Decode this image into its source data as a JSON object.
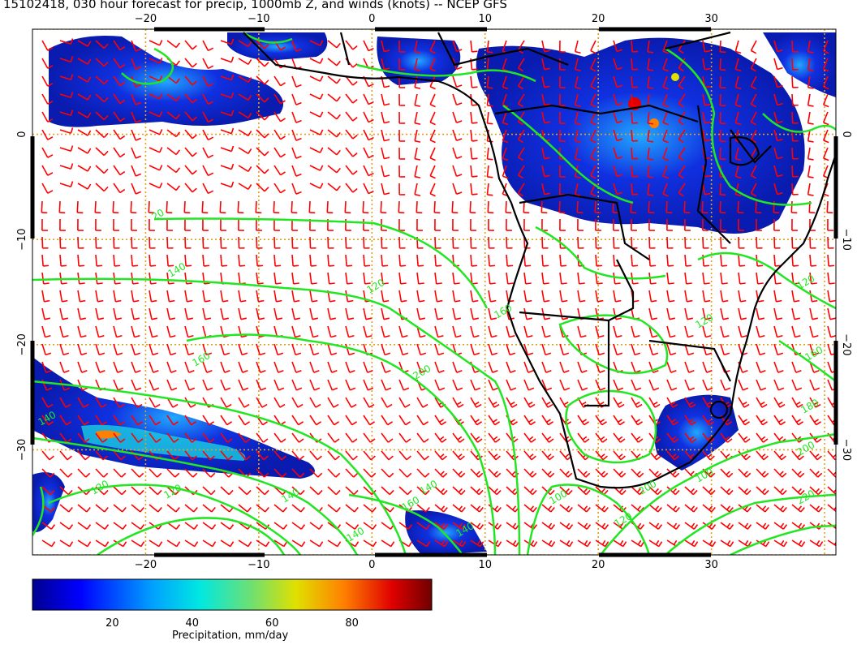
{
  "title": "15102418, 030 hour forecast for precip, 1000mb Z, and winds (knots) -- NCEP GFS",
  "map": {
    "lon_range": [
      -30,
      41
    ],
    "lat_range": [
      -40,
      10
    ],
    "lon_ticks": [
      -20,
      -10,
      0,
      10,
      20,
      30
    ],
    "lat_ticks": [
      0,
      -10,
      -20,
      -30
    ],
    "lon_tick_labels": [
      "−20",
      "−10",
      "0",
      "10",
      "20",
      "30"
    ],
    "lat_tick_labels": [
      "0",
      "−10",
      "−20",
      "−30"
    ],
    "grid": true,
    "colors": {
      "contour": "#22e622",
      "wind_barb": "#ff0000",
      "coastline": "#000000",
      "graticule": "#e0a020",
      "precip_low": "#00008f",
      "precip_high": "#800000"
    }
  },
  "contour_labels": [
    "20",
    "140",
    "120",
    "160",
    "160",
    "200",
    "160",
    "140",
    "120",
    "140",
    "200",
    "100",
    "120",
    "160",
    "180",
    "200",
    "220",
    "140",
    "120",
    "140",
    "120",
    "140",
    "100",
    "120"
  ],
  "colorbar": {
    "range": [
      0,
      100
    ],
    "ticks": [
      "20",
      "40",
      "60",
      "80"
    ],
    "caption": "Precipitation, mm/day"
  }
}
